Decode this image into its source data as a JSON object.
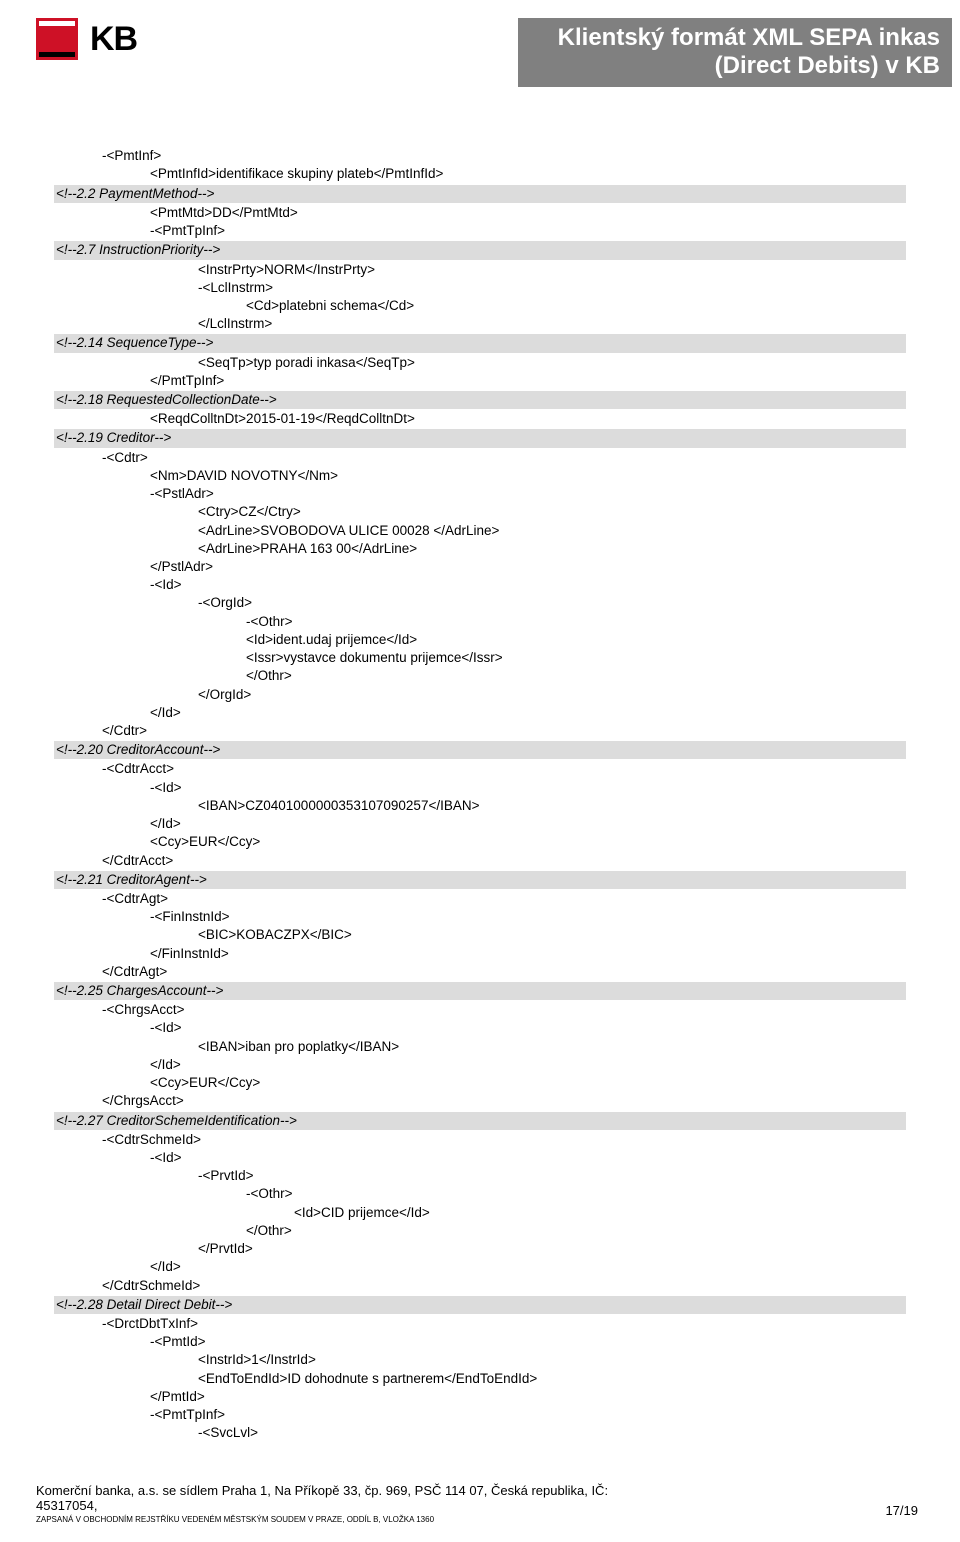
{
  "header": {
    "logo_text": "KB",
    "title_line1": "Klientský formát XML SEPA inkas",
    "title_line2": "(Direct Debits) v KB"
  },
  "colors": {
    "section_bg": "#dcdcdc",
    "title_bg": "#808080",
    "title_fg": "#ffffff",
    "logo_red": "#ce1126"
  },
  "lines": [
    {
      "cls": "row i1",
      "text": "-<PmtInf>"
    },
    {
      "cls": "row i2",
      "text": "<PmtInfId>identifikace skupiny plateb</PmtInfId>"
    },
    {
      "cls": "section",
      "text": "<!--2.2 PaymentMethod-->"
    },
    {
      "cls": "row i2",
      "text": "<PmtMtd>DD</PmtMtd>"
    },
    {
      "cls": "row i2",
      "text": "-<PmtTpInf>"
    },
    {
      "cls": "section",
      "text": "<!--2.7 InstructionPriority-->"
    },
    {
      "cls": "row i3",
      "text": "<InstrPrty>NORM</InstrPrty>"
    },
    {
      "cls": "row i3",
      "text": "-<LclInstrm>"
    },
    {
      "cls": "row i4",
      "text": "<Cd>platebni schema</Cd>"
    },
    {
      "cls": "row i3",
      "text": "</LclInstrm>"
    },
    {
      "cls": "section",
      "text": "<!--2.14 SequenceType-->"
    },
    {
      "cls": "row i3",
      "text": "<SeqTp>typ poradi inkasa</SeqTp>"
    },
    {
      "cls": "row i2",
      "text": "</PmtTpInf>"
    },
    {
      "cls": "section",
      "text": "<!--2.18 RequestedCollectionDate-->"
    },
    {
      "cls": "row i2",
      "text": "<ReqdColltnDt>2015-01-19</ReqdColltnDt>"
    },
    {
      "cls": "section",
      "text": "<!--2.19 Creditor-->"
    },
    {
      "cls": "row i1",
      "text": "-<Cdtr>"
    },
    {
      "cls": "row i2",
      "text": "<Nm>DAVID NOVOTNY</Nm>"
    },
    {
      "cls": "row i2",
      "text": "-<PstlAdr>"
    },
    {
      "cls": "row i3",
      "text": "<Ctry>CZ</Ctry>"
    },
    {
      "cls": "row i3",
      "text": "<AdrLine>SVOBODOVA ULICE 00028 </AdrLine>"
    },
    {
      "cls": "row i3",
      "text": "<AdrLine>PRAHA 163 00</AdrLine>"
    },
    {
      "cls": "row i2",
      "text": "</PstlAdr>"
    },
    {
      "cls": "row i2",
      "text": "-<Id>"
    },
    {
      "cls": "row i3",
      "text": "-<OrgId>"
    },
    {
      "cls": "row i4",
      "text": "-<Othr>"
    },
    {
      "cls": "row i4",
      "text": "<Id>ident.udaj prijemce</Id>"
    },
    {
      "cls": "row i4",
      "text": "<Issr>vystavce dokumentu prijemce</Issr>"
    },
    {
      "cls": "row i4",
      "text": "</Othr>"
    },
    {
      "cls": "row i3",
      "text": "</OrgId>"
    },
    {
      "cls": "row i2",
      "text": "</Id>"
    },
    {
      "cls": "row i1",
      "text": "</Cdtr>"
    },
    {
      "cls": "section",
      "text": "<!--2.20 CreditorAccount-->"
    },
    {
      "cls": "row i1",
      "text": "-<CdtrAcct>"
    },
    {
      "cls": "row i2",
      "text": "-<Id>"
    },
    {
      "cls": "row i3",
      "text": "<IBAN>CZ0401000000353107090257</IBAN>"
    },
    {
      "cls": "row i2",
      "text": "</Id>"
    },
    {
      "cls": "row i2",
      "text": "<Ccy>EUR</Ccy>"
    },
    {
      "cls": "row i1",
      "text": "</CdtrAcct>"
    },
    {
      "cls": "section",
      "text": "<!--2.21 CreditorAgent-->"
    },
    {
      "cls": "row i1",
      "text": "-<CdtrAgt>"
    },
    {
      "cls": "row i2",
      "text": "-<FinInstnId>"
    },
    {
      "cls": "row i3",
      "text": "<BIC>KOBACZPX</BIC>"
    },
    {
      "cls": "row i2",
      "text": "</FinInstnId>"
    },
    {
      "cls": "row i1",
      "text": "</CdtrAgt>"
    },
    {
      "cls": "section",
      "text": "<!--2.25 ChargesAccount-->"
    },
    {
      "cls": "row i1",
      "text": "-<ChrgsAcct>"
    },
    {
      "cls": "row i2",
      "text": "-<Id>"
    },
    {
      "cls": "row i3",
      "text": "<IBAN>iban pro poplatky</IBAN>"
    },
    {
      "cls": "row i2",
      "text": "</Id>"
    },
    {
      "cls": "row i2",
      "text": "<Ccy>EUR</Ccy>"
    },
    {
      "cls": "row i1",
      "text": "</ChrgsAcct>"
    },
    {
      "cls": "section",
      "text": "<!--2.27 CreditorSchemeIdentification-->"
    },
    {
      "cls": "row i1",
      "text": "-<CdtrSchmeId>"
    },
    {
      "cls": "row i2",
      "text": "-<Id>"
    },
    {
      "cls": "row i3",
      "text": "-<PrvtId>"
    },
    {
      "cls": "row i4",
      "text": "-<Othr>"
    },
    {
      "cls": "row i5",
      "text": "<Id>CID prijemce</Id>"
    },
    {
      "cls": "row i4",
      "text": "</Othr>"
    },
    {
      "cls": "row i3",
      "text": "</PrvtId>"
    },
    {
      "cls": "row i2",
      "text": "</Id>"
    },
    {
      "cls": "row i1",
      "text": "</CdtrSchmeId>"
    },
    {
      "cls": "section",
      "text": "<!--2.28 Detail Direct Debit-->"
    },
    {
      "cls": "row i1",
      "text": "-<DrctDbtTxInf>"
    },
    {
      "cls": "row i2",
      "text": "-<PmtId>"
    },
    {
      "cls": "row i3",
      "text": "<InstrId>1</InstrId>"
    },
    {
      "cls": "row i3",
      "text": "<EndToEndId>ID dohodnute s partnerem</EndToEndId>"
    },
    {
      "cls": "row i2",
      "text": "</PmtId>"
    },
    {
      "cls": "row i2",
      "text": "-<PmtTpInf>"
    },
    {
      "cls": "row i3",
      "text": "-<SvcLvl>"
    }
  ],
  "footer": {
    "line1": "Komerční banka, a.s. se sídlem Praha 1, Na Příkopě 33, čp. 969, PSČ 114 07, Česká republika, IČ:",
    "line2": "45317054,",
    "line3": "ZAPSANÁ V OBCHODNÍM REJSTŘÍKU VEDENÉM MĚSTSKÝM SOUDEM V PRAZE, ODDÍL B, VLOŽKA 1360",
    "page": "17/19"
  }
}
